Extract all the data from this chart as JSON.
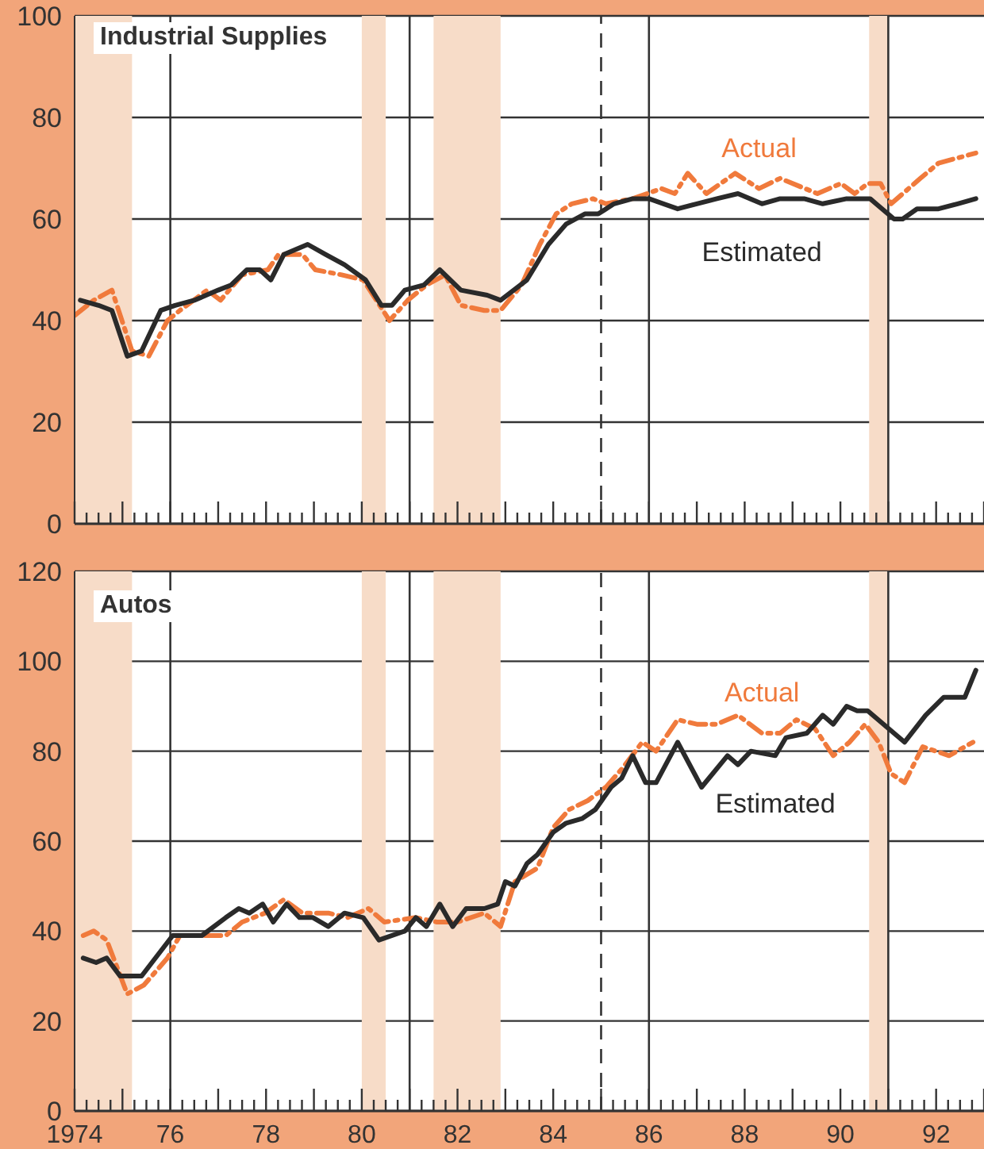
{
  "chart_data": [
    {
      "type": "line",
      "title": "Industrial Supplies",
      "xlim": [
        1974,
        1993
      ],
      "ylim": [
        0,
        100
      ],
      "yticks": [
        0,
        20,
        40,
        60,
        80,
        100
      ],
      "grid": "y",
      "marker": "none",
      "tick_labels": "y",
      "xticks": [
        {
          "value": 1974,
          "label": null
        },
        {
          "value": 1974.25,
          "label": null
        },
        {
          "value": 1974.5,
          "label": null
        },
        {
          "value": 1974.75,
          "label": null
        },
        {
          "value": 1975,
          "label": null
        },
        {
          "value": 1975.25,
          "label": null
        },
        {
          "value": 1975.5,
          "label": null
        },
        {
          "value": 1975.75,
          "label": null
        },
        {
          "value": 1976,
          "label": null
        },
        {
          "value": 1976.25,
          "label": null
        },
        {
          "value": 1976.5,
          "label": null
        },
        {
          "value": 1976.75,
          "label": null
        },
        {
          "value": 1977,
          "label": null
        },
        {
          "value": 1977.25,
          "label": null
        },
        {
          "value": 1977.5,
          "label": null
        },
        {
          "value": 1977.75,
          "label": null
        },
        {
          "value": 1978,
          "label": null
        },
        {
          "value": 1978.25,
          "label": null
        },
        {
          "value": 1978.5,
          "label": null
        },
        {
          "value": 1978.75,
          "label": null
        },
        {
          "value": 1979,
          "label": null
        },
        {
          "value": 1979.25,
          "label": null
        },
        {
          "value": 1979.5,
          "label": null
        },
        {
          "value": 1979.75,
          "label": null
        },
        {
          "value": 1980,
          "label": null
        },
        {
          "value": 1980.25,
          "label": null
        },
        {
          "value": 1980.5,
          "label": null
        },
        {
          "value": 1980.75,
          "label": null
        },
        {
          "value": 1981,
          "label": null
        },
        {
          "value": 1981.25,
          "label": null
        },
        {
          "value": 1981.5,
          "label": null
        },
        {
          "value": 1981.75,
          "label": null
        },
        {
          "value": 1982,
          "label": null
        },
        {
          "value": 1982.25,
          "label": null
        },
        {
          "value": 1982.5,
          "label": null
        },
        {
          "value": 1982.75,
          "label": null
        },
        {
          "value": 1983,
          "label": null
        },
        {
          "value": 1983.25,
          "label": null
        },
        {
          "value": 1983.5,
          "label": null
        },
        {
          "value": 1983.75,
          "label": null
        },
        {
          "value": 1984,
          "label": null
        },
        {
          "value": 1984.25,
          "label": null
        },
        {
          "value": 1984.5,
          "label": null
        },
        {
          "value": 1984.75,
          "label": null
        },
        {
          "value": 1985,
          "label": null
        },
        {
          "value": 1985.25,
          "label": null
        },
        {
          "value": 1985.5,
          "label": null
        },
        {
          "value": 1985.75,
          "label": null
        },
        {
          "value": 1986,
          "label": null
        },
        {
          "value": 1986.25,
          "label": null
        },
        {
          "value": 1986.5,
          "label": null
        },
        {
          "value": 1986.75,
          "label": null
        },
        {
          "value": 1987,
          "label": null
        },
        {
          "value": 1987.25,
          "label": null
        },
        {
          "value": 1987.5,
          "label": null
        },
        {
          "value": 1987.75,
          "label": null
        },
        {
          "value": 1988,
          "label": null
        },
        {
          "value": 1988.25,
          "label": null
        },
        {
          "value": 1988.5,
          "label": null
        },
        {
          "value": 1988.75,
          "label": null
        },
        {
          "value": 1989,
          "label": null
        },
        {
          "value": 1989.25,
          "label": null
        },
        {
          "value": 1989.5,
          "label": null
        },
        {
          "value": 1989.75,
          "label": null
        },
        {
          "value": 1990,
          "label": null
        },
        {
          "value": 1990.25,
          "label": null
        },
        {
          "value": 1990.5,
          "label": null
        },
        {
          "value": 1990.75,
          "label": null
        },
        {
          "value": 1991,
          "label": null
        },
        {
          "value": 1991.25,
          "label": null
        },
        {
          "value": 1991.5,
          "label": null
        },
        {
          "value": 1991.75,
          "label": null
        },
        {
          "value": 1992,
          "label": null
        },
        {
          "value": 1992.25,
          "label": null
        },
        {
          "value": 1992.5,
          "label": null
        },
        {
          "value": 1992.75,
          "label": null
        },
        {
          "value": 1993,
          "label": null
        }
      ],
      "bands": [
        {
          "axis": "x",
          "from": 1974,
          "to": 1975.2,
          "color": "#f7dcc8"
        },
        {
          "axis": "x",
          "from": 1980,
          "to": 1980.5,
          "color": "#f7dcc8"
        },
        {
          "axis": "x",
          "from": 1981.5,
          "to": 1982.9,
          "color": "#f7dcc8"
        },
        {
          "axis": "x",
          "from": 1990.6,
          "to": 1991,
          "color": "#f7dcc8"
        }
      ],
      "ref_lines": [
        {
          "axis": "x",
          "value": 1976,
          "color": "#333333",
          "line_style": "solid"
        },
        {
          "axis": "x",
          "value": 1981,
          "color": "#333333",
          "line_style": "solid"
        },
        {
          "axis": "x",
          "value": 1985,
          "color": "#333333",
          "line_style": "dashed"
        },
        {
          "axis": "x",
          "value": 1986,
          "color": "#333333",
          "line_style": "solid"
        },
        {
          "axis": "x",
          "value": 1991,
          "color": "#333333",
          "line_style": "solid"
        }
      ],
      "series": [
        {
          "name": "Actual",
          "color": "#f07a3c",
          "line_style": "dashed",
          "x": [
            1974.0,
            1974.4,
            1974.78,
            1975.2,
            1975.55,
            1975.94,
            1976.2,
            1976.77,
            1977.05,
            1977.5,
            1978.04,
            1978.26,
            1978.76,
            1979.03,
            1979.58,
            1980.03,
            1980.58,
            1980.96,
            1981.35,
            1981.74,
            1982.07,
            1982.56,
            1982.9,
            1983.34,
            1983.72,
            1984.06,
            1984.39,
            1984.83,
            1985.1,
            1985.66,
            1986.26,
            1986.54,
            1986.81,
            1987.2,
            1987.8,
            1988.3,
            1988.74,
            1989.52,
            1990.01,
            1990.3,
            1990.57,
            1990.84,
            1991.06,
            1991.67,
            1992.05,
            1992.83
          ],
          "values": [
            41,
            44,
            46,
            34,
            33,
            40,
            42,
            46,
            44,
            49,
            50,
            53,
            53,
            50,
            49,
            48,
            40,
            44,
            47,
            49,
            43,
            42,
            42,
            47,
            55,
            61,
            63,
            64,
            63,
            64,
            66,
            65,
            69,
            65,
            69,
            66,
            68,
            65,
            67,
            65,
            67,
            67,
            63,
            68,
            71,
            73
          ]
        },
        {
          "name": "Estimated",
          "color": "#2a2a2a",
          "line_style": "solid",
          "x": [
            1974.12,
            1974.5,
            1974.78,
            1975.1,
            1975.4,
            1975.8,
            1976.1,
            1976.5,
            1977.0,
            1977.27,
            1977.6,
            1977.87,
            1978.1,
            1978.37,
            1978.87,
            1979.25,
            1979.64,
            1980.08,
            1980.41,
            1980.63,
            1980.9,
            1981.3,
            1981.63,
            1982.07,
            1982.62,
            1982.9,
            1983.45,
            1983.9,
            1984.27,
            1984.66,
            1984.94,
            1985.27,
            1985.66,
            1986.0,
            1986.6,
            1987.0,
            1987.42,
            1987.86,
            1988.36,
            1988.74,
            1989.24,
            1989.63,
            1990.13,
            1990.35,
            1990.62,
            1991.12,
            1991.3,
            1991.6,
            1992.05,
            1992.45,
            1992.83
          ],
          "values": [
            44,
            43,
            42,
            33,
            34,
            42,
            43,
            44,
            46,
            47,
            50,
            50,
            48,
            53,
            55,
            53,
            51,
            48,
            43,
            43,
            46,
            47,
            50,
            46,
            45,
            44,
            48,
            55,
            59,
            61,
            61,
            63,
            64,
            64,
            62,
            63,
            64,
            65,
            63,
            64,
            64,
            63,
            64,
            64,
            64,
            60,
            60,
            62,
            62,
            63,
            64
          ]
        }
      ]
    },
    {
      "type": "line",
      "title": "Autos",
      "xlim": [
        1974,
        1993
      ],
      "ylim": [
        0,
        120
      ],
      "yticks": [
        0,
        20,
        40,
        60,
        80,
        100,
        120
      ],
      "grid": "y",
      "marker": "none",
      "xticks": [
        {
          "value": 1974,
          "label": "1974"
        },
        {
          "value": 1974.25,
          "label": null
        },
        {
          "value": 1974.5,
          "label": null
        },
        {
          "value": 1974.75,
          "label": null
        },
        {
          "value": 1975,
          "label": null
        },
        {
          "value": 1975.25,
          "label": null
        },
        {
          "value": 1975.5,
          "label": null
        },
        {
          "value": 1975.75,
          "label": null
        },
        {
          "value": 1976,
          "label": "76"
        },
        {
          "value": 1976.25,
          "label": null
        },
        {
          "value": 1976.5,
          "label": null
        },
        {
          "value": 1976.75,
          "label": null
        },
        {
          "value": 1977,
          "label": null
        },
        {
          "value": 1977.25,
          "label": null
        },
        {
          "value": 1977.5,
          "label": null
        },
        {
          "value": 1977.75,
          "label": null
        },
        {
          "value": 1978,
          "label": "78"
        },
        {
          "value": 1978.25,
          "label": null
        },
        {
          "value": 1978.5,
          "label": null
        },
        {
          "value": 1978.75,
          "label": null
        },
        {
          "value": 1979,
          "label": null
        },
        {
          "value": 1979.25,
          "label": null
        },
        {
          "value": 1979.5,
          "label": null
        },
        {
          "value": 1979.75,
          "label": null
        },
        {
          "value": 1980,
          "label": "80"
        },
        {
          "value": 1980.25,
          "label": null
        },
        {
          "value": 1980.5,
          "label": null
        },
        {
          "value": 1980.75,
          "label": null
        },
        {
          "value": 1981,
          "label": null
        },
        {
          "value": 1981.25,
          "label": null
        },
        {
          "value": 1981.5,
          "label": null
        },
        {
          "value": 1981.75,
          "label": null
        },
        {
          "value": 1982,
          "label": "82"
        },
        {
          "value": 1982.25,
          "label": null
        },
        {
          "value": 1982.5,
          "label": null
        },
        {
          "value": 1982.75,
          "label": null
        },
        {
          "value": 1983,
          "label": null
        },
        {
          "value": 1983.25,
          "label": null
        },
        {
          "value": 1983.5,
          "label": null
        },
        {
          "value": 1983.75,
          "label": null
        },
        {
          "value": 1984,
          "label": "84"
        },
        {
          "value": 1984.25,
          "label": null
        },
        {
          "value": 1984.5,
          "label": null
        },
        {
          "value": 1984.75,
          "label": null
        },
        {
          "value": 1985,
          "label": null
        },
        {
          "value": 1985.25,
          "label": null
        },
        {
          "value": 1985.5,
          "label": null
        },
        {
          "value": 1985.75,
          "label": null
        },
        {
          "value": 1986,
          "label": "86"
        },
        {
          "value": 1986.25,
          "label": null
        },
        {
          "value": 1986.5,
          "label": null
        },
        {
          "value": 1986.75,
          "label": null
        },
        {
          "value": 1987,
          "label": null
        },
        {
          "value": 1987.25,
          "label": null
        },
        {
          "value": 1987.5,
          "label": null
        },
        {
          "value": 1987.75,
          "label": null
        },
        {
          "value": 1988,
          "label": "88"
        },
        {
          "value": 1988.25,
          "label": null
        },
        {
          "value": 1988.5,
          "label": null
        },
        {
          "value": 1988.75,
          "label": null
        },
        {
          "value": 1989,
          "label": null
        },
        {
          "value": 1989.25,
          "label": null
        },
        {
          "value": 1989.5,
          "label": null
        },
        {
          "value": 1989.75,
          "label": null
        },
        {
          "value": 1990,
          "label": "90"
        },
        {
          "value": 1990.25,
          "label": null
        },
        {
          "value": 1990.5,
          "label": null
        },
        {
          "value": 1990.75,
          "label": null
        },
        {
          "value": 1991,
          "label": null
        },
        {
          "value": 1991.25,
          "label": null
        },
        {
          "value": 1991.5,
          "label": null
        },
        {
          "value": 1991.75,
          "label": null
        },
        {
          "value": 1992,
          "label": "92"
        },
        {
          "value": 1992.25,
          "label": null
        },
        {
          "value": 1992.5,
          "label": null
        },
        {
          "value": 1992.75,
          "label": null
        },
        {
          "value": 1993,
          "label": null
        }
      ],
      "bands": [
        {
          "axis": "x",
          "from": 1974,
          "to": 1975.2,
          "color": "#f7dcc8"
        },
        {
          "axis": "x",
          "from": 1980,
          "to": 1980.5,
          "color": "#f7dcc8"
        },
        {
          "axis": "x",
          "from": 1981.5,
          "to": 1982.9,
          "color": "#f7dcc8"
        },
        {
          "axis": "x",
          "from": 1990.6,
          "to": 1991,
          "color": "#f7dcc8"
        }
      ],
      "ref_lines": [
        {
          "axis": "x",
          "value": 1976,
          "color": "#333333",
          "line_style": "solid"
        },
        {
          "axis": "x",
          "value": 1981,
          "color": "#333333",
          "line_style": "solid"
        },
        {
          "axis": "x",
          "value": 1985,
          "color": "#333333",
          "line_style": "dashed"
        },
        {
          "axis": "x",
          "value": 1986,
          "color": "#333333",
          "line_style": "solid"
        },
        {
          "axis": "x",
          "value": 1991,
          "color": "#333333",
          "line_style": "solid"
        }
      ],
      "series": [
        {
          "name": "Actual",
          "color": "#f07a3c",
          "line_style": "dashed",
          "x": [
            1974.18,
            1974.4,
            1974.67,
            1975.1,
            1975.45,
            1975.94,
            1976.2,
            1976.77,
            1977.16,
            1977.5,
            1977.98,
            1978.37,
            1978.76,
            1979.3,
            1979.7,
            1980.14,
            1980.47,
            1981.13,
            1981.57,
            1982.0,
            1982.56,
            1982.9,
            1983.2,
            1983.67,
            1984.0,
            1984.33,
            1984.72,
            1985.1,
            1985.43,
            1985.86,
            1986.15,
            1986.6,
            1987.0,
            1987.42,
            1987.86,
            1988.36,
            1988.74,
            1989.08,
            1989.47,
            1989.85,
            1990.19,
            1990.52,
            1990.8,
            1991.06,
            1991.34,
            1991.72,
            1992.27,
            1992.77
          ],
          "values": [
            39,
            40,
            38,
            26,
            28,
            34,
            39,
            39,
            39,
            42,
            44,
            47,
            44,
            44,
            43,
            45,
            42,
            43,
            42,
            42,
            44,
            41,
            51,
            54,
            63,
            67,
            69,
            72,
            76,
            82,
            80,
            87,
            86,
            86,
            88,
            84,
            84,
            87,
            85,
            79,
            82,
            86,
            82,
            75,
            73,
            81,
            79,
            82
          ]
        },
        {
          "name": "Estimated",
          "color": "#2a2a2a",
          "line_style": "solid",
          "x": [
            1974.18,
            1974.45,
            1974.67,
            1974.95,
            1975.23,
            1975.4,
            1976.05,
            1976.66,
            1977.16,
            1977.43,
            1977.65,
            1977.93,
            1978.15,
            1978.43,
            1978.7,
            1978.98,
            1979.3,
            1979.64,
            1980.03,
            1980.36,
            1980.9,
            1981.13,
            1981.35,
            1981.63,
            1981.9,
            1982.18,
            1982.56,
            1982.84,
            1983.0,
            1983.2,
            1983.45,
            1983.67,
            1984.0,
            1984.27,
            1984.6,
            1984.88,
            1985.21,
            1985.43,
            1985.66,
            1985.93,
            1986.15,
            1986.6,
            1987.1,
            1987.64,
            1987.86,
            1988.13,
            1988.64,
            1988.86,
            1989.3,
            1989.63,
            1989.85,
            1990.13,
            1990.35,
            1990.57,
            1991.12,
            1991.34,
            1991.78,
            1992.16,
            1992.6,
            1992.83
          ],
          "values": [
            34,
            33,
            34,
            30,
            30,
            30,
            39,
            39,
            43,
            45,
            44,
            46,
            42,
            46,
            43,
            43,
            41,
            44,
            43,
            38,
            40,
            43,
            41,
            46,
            41,
            45,
            45,
            46,
            51,
            50,
            55,
            57,
            62,
            64,
            65,
            67,
            72,
            74,
            79,
            73,
            73,
            82,
            72,
            79,
            77,
            80,
            79,
            83,
            84,
            88,
            86,
            90,
            89,
            89,
            84,
            82,
            88,
            92,
            92,
            98
          ]
        }
      ]
    }
  ]
}
